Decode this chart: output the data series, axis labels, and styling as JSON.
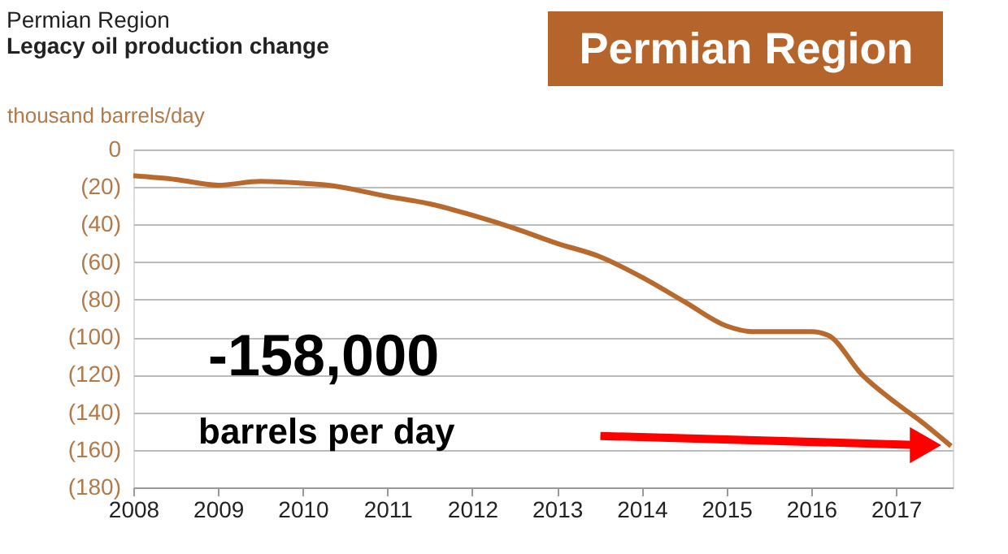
{
  "chart_data": {
    "type": "line",
    "title": "Permian Region",
    "subtitle": "Legacy oil production change",
    "ylabel": "thousand barrels/day",
    "x": [
      2008,
      2008.5,
      2009,
      2009.5,
      2010,
      2010.3,
      2011,
      2011.5,
      2012,
      2012.5,
      2013,
      2013.5,
      2014,
      2014.5,
      2015,
      2015.3,
      2016,
      2016.2,
      2016.6,
      2017,
      2017.3,
      2017.65
    ],
    "series": [
      {
        "color": "#b8692e",
        "values": [
          -14,
          -16,
          -19,
          -17,
          -18,
          -19,
          -25,
          -29,
          -35,
          -42,
          -50,
          -57,
          -68,
          -81,
          -94,
          -97,
          -97,
          -99,
          -120,
          -135,
          -145,
          -158
        ]
      }
    ],
    "xlim": [
      2008,
      2017.67
    ],
    "xticks": [
      2008,
      2009,
      2010,
      2011,
      2012,
      2013,
      2014,
      2015,
      2016,
      2017
    ],
    "ylim": [
      -180,
      0
    ],
    "yticks": [
      0,
      {
        "value": -20,
        "label": "(20)"
      },
      {
        "value": -40,
        "label": "(40)"
      },
      {
        "value": -60,
        "label": "(60)"
      },
      {
        "value": -80,
        "label": "(80)"
      },
      {
        "value": -100,
        "label": "(100)"
      },
      {
        "value": -120,
        "label": "(120)"
      },
      {
        "value": -140,
        "label": "(140)"
      },
      {
        "value": -160,
        "label": "(160)"
      },
      {
        "value": -180,
        "label": "(180)"
      }
    ],
    "grid": "y",
    "line_style": "solid",
    "marker": "none",
    "annotations": [
      "Permian Region",
      "-158,000",
      "barrels per day"
    ]
  }
}
